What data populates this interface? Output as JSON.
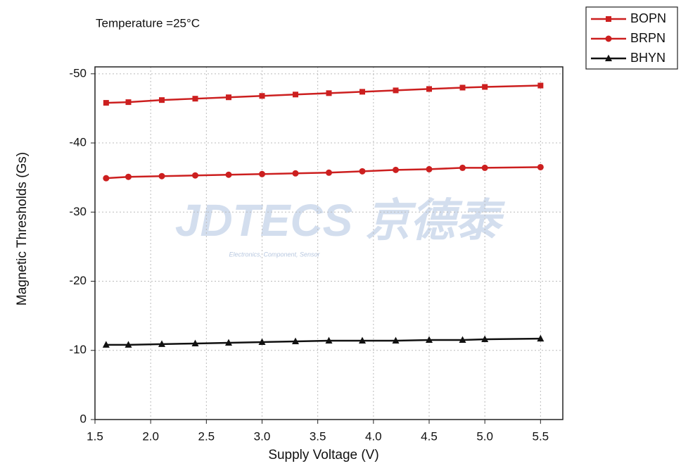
{
  "chart_data": {
    "type": "line",
    "annotation": "Temperature =25°C",
    "watermark": "JDTECS 京德泰",
    "watermark_subtitle": "Electronics, Component, Sensor",
    "xlabel": "Supply Voltage (V)",
    "ylabel": "Magnetic Thresholds (Gs)",
    "x": [
      1.6,
      1.8,
      2.1,
      2.4,
      2.7,
      3.0,
      3.3,
      3.6,
      3.9,
      4.2,
      4.5,
      4.8,
      5.0,
      5.5
    ],
    "series": [
      {
        "name": "BOPN",
        "color": "#cc1f1f",
        "marker": "square",
        "values": [
          -45.8,
          -45.9,
          -46.2,
          -46.4,
          -46.6,
          -46.8,
          -47.0,
          -47.2,
          -47.4,
          -47.6,
          -47.8,
          -48.0,
          -48.1,
          -48.3
        ]
      },
      {
        "name": "BRPN",
        "color": "#cc1f1f",
        "marker": "circle",
        "values": [
          -34.9,
          -35.1,
          -35.2,
          -35.3,
          -35.4,
          -35.5,
          -35.6,
          -35.7,
          -35.9,
          -36.1,
          -36.2,
          -36.4,
          -36.4,
          -36.5
        ]
      },
      {
        "name": "BHYN",
        "color": "#111111",
        "marker": "triangle",
        "values": [
          -10.8,
          -10.8,
          -10.9,
          -11.0,
          -11.1,
          -11.2,
          -11.3,
          -11.4,
          -11.4,
          -11.4,
          -11.5,
          -11.5,
          -11.6,
          -11.7
        ]
      }
    ],
    "xlim": [
      1.5,
      5.7
    ],
    "xticks": [
      {
        "value": 1.5,
        "label": "1.5"
      },
      {
        "value": 2,
        "label": "2.0"
      },
      {
        "value": 2.5,
        "label": "2.5"
      },
      {
        "value": 3,
        "label": "3.0"
      },
      {
        "value": 3.5,
        "label": "3.5"
      },
      {
        "value": 4,
        "label": "4.0"
      },
      {
        "value": 4.5,
        "label": "4.5"
      },
      {
        "value": 5,
        "label": "5.0"
      },
      {
        "value": 5.5,
        "label": "5.5"
      }
    ],
    "ylim": [
      0,
      -51
    ],
    "yticks": [
      0,
      -10,
      -20,
      -30,
      -40,
      -50
    ],
    "grid": true,
    "legend": "top-right"
  }
}
